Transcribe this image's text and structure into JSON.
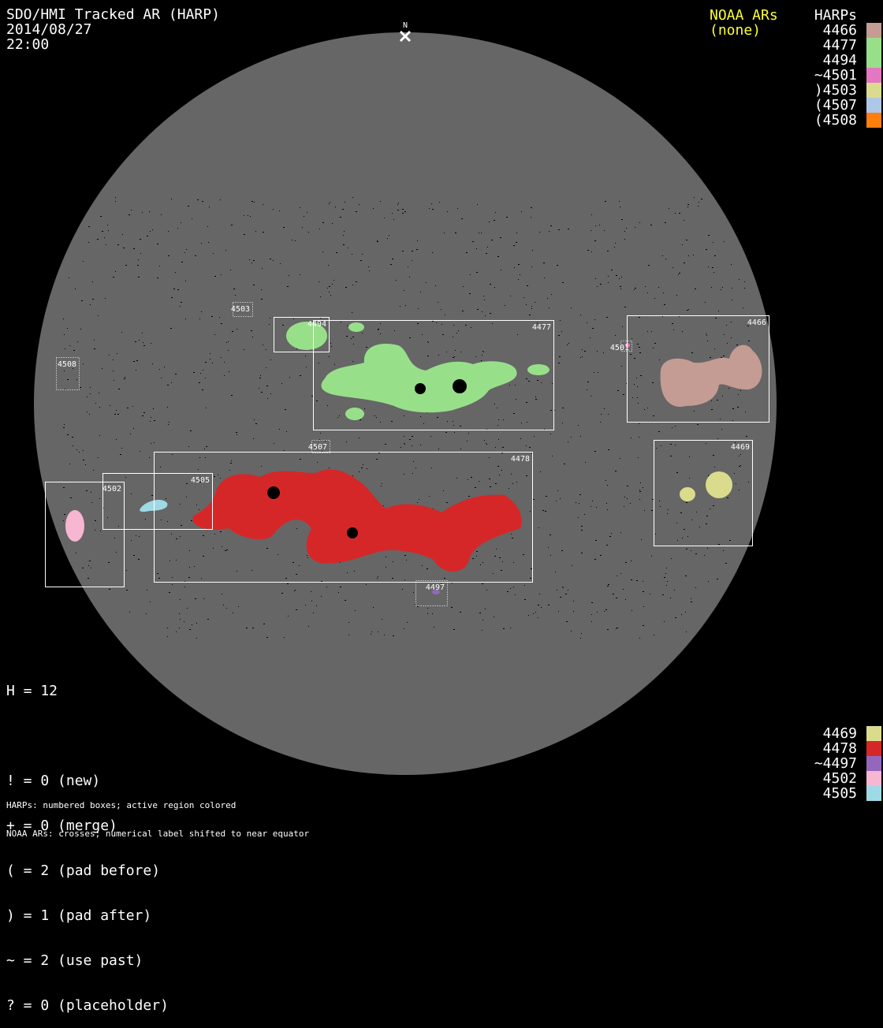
{
  "header": {
    "title": "SDO/HMI Tracked AR (HARP)",
    "date": "2014/08/27",
    "time": "22:00"
  },
  "north_label": "N",
  "noaa": {
    "title": "NOAA ARs",
    "value": "(none)",
    "color": "#ffff33"
  },
  "harps_legend": {
    "title": "HARPs",
    "top": [
      {
        "label": "4466",
        "color": "#c49c94"
      },
      {
        "label": "4477",
        "color": "#98df8a"
      },
      {
        "label": "4494",
        "color": "#98df8a"
      },
      {
        "label": "~4501",
        "color": "#e377c2"
      },
      {
        "label": ")4503",
        "color": "#dbdb8d"
      },
      {
        "label": "(4507",
        "color": "#aec7e8"
      },
      {
        "label": "(4508",
        "color": "#ff7f0e"
      }
    ],
    "bottom": [
      {
        "label": "4469",
        "color": "#dbdb8d"
      },
      {
        "label": "4478",
        "color": "#d62728"
      },
      {
        "label": "~4497",
        "color": "#9467bd"
      },
      {
        "label": "4502",
        "color": "#f7b6d2"
      },
      {
        "label": "4505",
        "color": "#9edae5"
      }
    ]
  },
  "stats": {
    "h": "H = 12",
    "lines": [
      "! = 0 (new)",
      "+ = 0 (merge)",
      "( = 2 (pad before)",
      ") = 1 (pad after)",
      "~ = 2 (use past)",
      "? = 0 (placeholder)"
    ]
  },
  "footer": [
    "HARPs: numbered boxes; active region colored",
    "NOAA ARs: crosses; numerical label shifted to near equator"
  ],
  "regions": [
    {
      "id": "4503",
      "color": "#dbdb8d",
      "dotted": true
    },
    {
      "id": "4494",
      "color": "#98df8a",
      "dotted": false
    },
    {
      "id": "4477",
      "color": "#98df8a",
      "dotted": false
    },
    {
      "id": "4501",
      "color": "#e377c2",
      "dotted": true
    },
    {
      "id": "4466",
      "color": "#c49c94",
      "dotted": false
    },
    {
      "id": "4508",
      "color": "#ff7f0e",
      "dotted": true
    },
    {
      "id": "4507",
      "color": "#aec7e8",
      "dotted": true
    },
    {
      "id": "4478",
      "color": "#d62728",
      "dotted": false
    },
    {
      "id": "4505",
      "color": "#9edae5",
      "dotted": false
    },
    {
      "id": "4502",
      "color": "#f7b6d2",
      "dotted": false
    },
    {
      "id": "4469",
      "color": "#dbdb8d",
      "dotted": false
    },
    {
      "id": "4497",
      "color": "#9467bd",
      "dotted": true
    }
  ]
}
